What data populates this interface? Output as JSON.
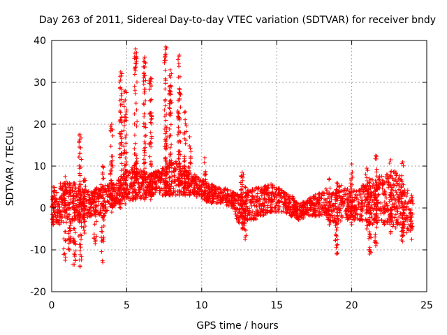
{
  "chart_data": {
    "type": "scatter",
    "title": "Day 263 of 2011, Sidereal Day-to-day VTEC variation (SDTVAR) for receiver bndy",
    "xlabel": "GPS time / hours",
    "ylabel": "SDTVAR / TECUs",
    "xlim": [
      0,
      25
    ],
    "ylim": [
      -20,
      40
    ],
    "xticks": [
      0,
      5,
      10,
      15,
      20,
      25
    ],
    "yticks": [
      -20,
      -10,
      0,
      10,
      20,
      30,
      40
    ],
    "xtick_labels": [
      "0",
      "5",
      "10",
      "15",
      "20",
      "25"
    ],
    "ytick_labels": [
      "-20",
      "-10",
      "0",
      "10",
      "20",
      "30",
      "40"
    ],
    "grid": true,
    "marker": "+",
    "series": [
      {
        "name": "SDTVAR",
        "color": "#ff0000",
        "envelope": {
          "x": [
            0.0,
            0.5,
            1.0,
            1.5,
            2.0,
            2.5,
            3.0,
            3.5,
            4.0,
            4.5,
            5.0,
            5.5,
            6.0,
            6.5,
            7.0,
            7.5,
            8.0,
            8.5,
            9.0,
            9.5,
            10.0,
            10.5,
            11.0,
            11.5,
            12.0,
            12.5,
            13.0,
            13.5,
            14.0,
            14.5,
            15.0,
            15.5,
            16.0,
            16.5,
            17.0,
            17.5,
            18.0,
            18.5,
            19.0,
            19.5,
            20.0,
            20.5,
            21.0,
            21.5,
            22.0,
            22.5,
            23.0,
            23.5,
            24.0
          ],
          "upper": [
            5,
            6,
            6,
            5,
            5,
            4,
            5,
            6,
            6,
            7,
            9,
            10,
            9,
            8,
            9,
            10,
            12,
            11,
            9,
            8,
            7,
            6,
            5,
            5,
            4,
            3,
            4,
            5,
            5,
            6,
            5,
            4,
            3,
            1,
            2,
            3,
            4,
            5,
            6,
            5,
            4,
            5,
            6,
            7,
            8,
            9,
            9,
            6,
            3
          ],
          "lower": [
            -4,
            -4,
            -3,
            -3,
            -3,
            -2,
            -2,
            -2,
            0,
            1,
            1,
            2,
            2,
            3,
            3,
            3,
            3,
            3,
            3,
            3,
            2,
            1,
            1,
            1,
            0,
            -4,
            -3,
            -3,
            -2,
            -1,
            -1,
            -1,
            -2,
            -3,
            -2,
            -2,
            -2,
            -3,
            -4,
            -3,
            -3,
            -3,
            -4,
            -4,
            -4,
            -4,
            -5,
            -6,
            -6
          ]
        },
        "spikes": [
          {
            "x": 0.1,
            "min": -4,
            "max": 5
          },
          {
            "x": 0.9,
            "min": -12.5,
            "max": 7.5
          },
          {
            "x": 1.2,
            "min": -10,
            "max": 6
          },
          {
            "x": 1.5,
            "min": -13.5,
            "max": 6
          },
          {
            "x": 1.9,
            "min": -14,
            "max": 17.5
          },
          {
            "x": 2.2,
            "min": -6,
            "max": 7
          },
          {
            "x": 2.9,
            "min": -8.5,
            "max": 4
          },
          {
            "x": 3.4,
            "min": -13,
            "max": 10
          },
          {
            "x": 4.0,
            "min": -1,
            "max": 20
          },
          {
            "x": 4.6,
            "min": 0,
            "max": 32.5
          },
          {
            "x": 4.9,
            "min": 1,
            "max": 28
          },
          {
            "x": 5.6,
            "min": 2,
            "max": 38
          },
          {
            "x": 6.2,
            "min": 2,
            "max": 36
          },
          {
            "x": 6.6,
            "min": 2,
            "max": 31
          },
          {
            "x": 7.6,
            "min": 3,
            "max": 38.5
          },
          {
            "x": 7.9,
            "min": 3,
            "max": 33
          },
          {
            "x": 8.5,
            "min": 3,
            "max": 36.5
          },
          {
            "x": 8.9,
            "min": 3,
            "max": 23
          },
          {
            "x": 9.2,
            "min": 3,
            "max": 17
          },
          {
            "x": 10.2,
            "min": 2,
            "max": 12
          },
          {
            "x": 12.7,
            "min": -5,
            "max": 8.5
          },
          {
            "x": 12.9,
            "min": -7.5,
            "max": 5
          },
          {
            "x": 18.5,
            "min": -4,
            "max": 7
          },
          {
            "x": 19.0,
            "min": -11,
            "max": 6
          },
          {
            "x": 20.0,
            "min": -4,
            "max": 10.5
          },
          {
            "x": 21.0,
            "min": -5,
            "max": 9.5
          },
          {
            "x": 21.2,
            "min": -11,
            "max": 7
          },
          {
            "x": 21.6,
            "min": -9,
            "max": 12.5
          },
          {
            "x": 22.6,
            "min": -6,
            "max": 11.5
          },
          {
            "x": 23.4,
            "min": -8,
            "max": 11
          },
          {
            "x": 24.0,
            "min": -7.5,
            "max": 3
          }
        ]
      }
    ]
  }
}
